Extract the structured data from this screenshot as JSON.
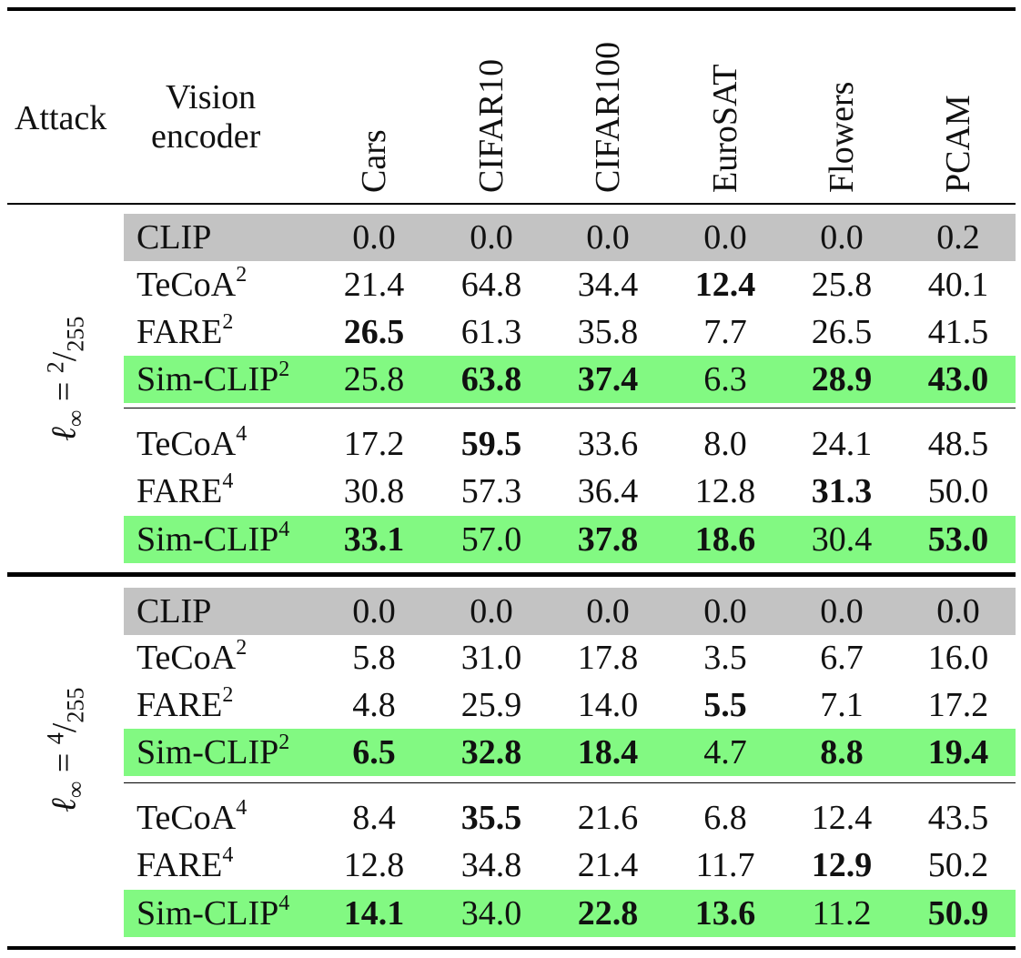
{
  "header": {
    "attack": "Attack",
    "encoder_line1": "Vision",
    "encoder_line2": "encoder",
    "datasets": [
      "Cars",
      "CIFAR10",
      "CIFAR100",
      "EuroSAT",
      "Flowers",
      "PCAM"
    ]
  },
  "groups": [
    {
      "label": "ℓ∞ = 2/255",
      "label_var": "ℓ",
      "label_sub": "∞",
      "label_eq": " = ",
      "label_num": "2",
      "label_den": "255",
      "blocks": [
        [
          {
            "name": "CLIP",
            "sup": "",
            "highlight": "gray",
            "values": [
              "0.0",
              "0.0",
              "0.0",
              "0.0",
              "0.0",
              "0.2"
            ],
            "bold": [
              false,
              false,
              false,
              false,
              false,
              false
            ]
          }
        ],
        [
          {
            "name": "TeCoA",
            "sup": "2",
            "highlight": "",
            "values": [
              "21.4",
              "64.8",
              "34.4",
              "12.4",
              "25.8",
              "40.1"
            ],
            "bold": [
              false,
              false,
              false,
              true,
              false,
              false
            ]
          },
          {
            "name": "FARE",
            "sup": "2",
            "highlight": "",
            "values": [
              "26.5",
              "61.3",
              "35.8",
              "7.7",
              "26.5",
              "41.5"
            ],
            "bold": [
              true,
              false,
              false,
              false,
              false,
              false
            ]
          },
          {
            "name": "Sim-CLIP",
            "sup": "2",
            "highlight": "green",
            "values": [
              "25.8",
              "63.8",
              "37.4",
              "6.3",
              "28.9",
              "43.0"
            ],
            "bold": [
              false,
              true,
              true,
              false,
              true,
              true
            ]
          }
        ],
        [
          {
            "name": "TeCoA",
            "sup": "4",
            "highlight": "",
            "values": [
              "17.2",
              "59.5",
              "33.6",
              "8.0",
              "24.1",
              "48.5"
            ],
            "bold": [
              false,
              true,
              false,
              false,
              false,
              false
            ]
          },
          {
            "name": "FARE",
            "sup": "4",
            "highlight": "",
            "values": [
              "30.8",
              "57.3",
              "36.4",
              "12.8",
              "31.3",
              "50.0"
            ],
            "bold": [
              false,
              false,
              false,
              false,
              true,
              false
            ]
          },
          {
            "name": "Sim-CLIP",
            "sup": "4",
            "highlight": "green",
            "values": [
              "33.1",
              "57.0",
              "37.8",
              "18.6",
              "30.4",
              "53.0"
            ],
            "bold": [
              true,
              false,
              true,
              true,
              false,
              true
            ]
          }
        ]
      ]
    },
    {
      "label": "ℓ∞ = 4/255",
      "label_var": "ℓ",
      "label_sub": "∞",
      "label_eq": " = ",
      "label_num": "4",
      "label_den": "255",
      "blocks": [
        [
          {
            "name": "CLIP",
            "sup": "",
            "highlight": "gray",
            "values": [
              "0.0",
              "0.0",
              "0.0",
              "0.0",
              "0.0",
              "0.0"
            ],
            "bold": [
              false,
              false,
              false,
              false,
              false,
              false
            ]
          }
        ],
        [
          {
            "name": "TeCoA",
            "sup": "2",
            "highlight": "",
            "values": [
              "5.8",
              "31.0",
              "17.8",
              "3.5",
              "6.7",
              "16.0"
            ],
            "bold": [
              false,
              false,
              false,
              false,
              false,
              false
            ]
          },
          {
            "name": "FARE",
            "sup": "2",
            "highlight": "",
            "values": [
              "4.8",
              "25.9",
              "14.0",
              "5.5",
              "7.1",
              "17.2"
            ],
            "bold": [
              false,
              false,
              false,
              true,
              false,
              false
            ]
          },
          {
            "name": "Sim-CLIP",
            "sup": "2",
            "highlight": "green",
            "values": [
              "6.5",
              "32.8",
              "18.4",
              "4.7",
              "8.8",
              "19.4"
            ],
            "bold": [
              true,
              true,
              true,
              false,
              true,
              true
            ]
          }
        ],
        [
          {
            "name": "TeCoA",
            "sup": "4",
            "highlight": "",
            "values": [
              "8.4",
              "35.5",
              "21.6",
              "6.8",
              "12.4",
              "43.5"
            ],
            "bold": [
              false,
              true,
              false,
              false,
              false,
              false
            ]
          },
          {
            "name": "FARE",
            "sup": "4",
            "highlight": "",
            "values": [
              "12.8",
              "34.8",
              "21.4",
              "11.7",
              "12.9",
              "50.2"
            ],
            "bold": [
              false,
              false,
              false,
              false,
              true,
              false
            ]
          },
          {
            "name": "Sim-CLIP",
            "sup": "4",
            "highlight": "green",
            "values": [
              "14.1",
              "34.0",
              "22.8",
              "13.6",
              "11.2",
              "50.9"
            ],
            "bold": [
              true,
              false,
              true,
              true,
              false,
              true
            ]
          }
        ]
      ]
    }
  ],
  "colors": {
    "gray_row": "#c3c3c3",
    "green_row": "#82f982",
    "rule": "#000000"
  }
}
